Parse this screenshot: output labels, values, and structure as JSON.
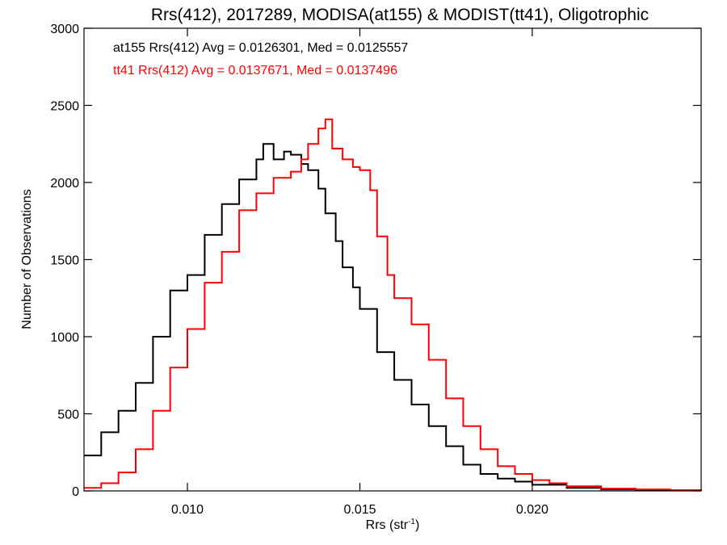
{
  "chart_data": {
    "type": "line",
    "title": "Rrs(412), 2017289, MODISA(at155) & MODIST(tt41), Oligotrophic",
    "xlabel": "Rrs (str",
    "xlabel_exp": "-1",
    "xlabel_end": ")",
    "ylabel": "Number of Observations",
    "xlim": [
      0.007,
      0.0249
    ],
    "ylim": [
      0,
      3000
    ],
    "xticks": [
      {
        "value": 0.01,
        "label": "0.010"
      },
      {
        "value": 0.015,
        "label": "0.015"
      },
      {
        "value": 0.02,
        "label": "0.020"
      }
    ],
    "yticks": [
      {
        "value": 0,
        "label": "0"
      },
      {
        "value": 500,
        "label": "500"
      },
      {
        "value": 1000,
        "label": "1000"
      },
      {
        "value": 1500,
        "label": "1500"
      },
      {
        "value": 2000,
        "label": "2000"
      },
      {
        "value": 2500,
        "label": "2500"
      },
      {
        "value": 3000,
        "label": "3000"
      }
    ],
    "grid": false,
    "legend_position": "top-left",
    "series": [
      {
        "name": "at155",
        "stat_text": "at155 Rrs(412) Avg = 0.0126301, Med = 0.0125557",
        "color": "#000000",
        "style": "step",
        "x": [
          0.007,
          0.0075,
          0.008,
          0.0085,
          0.009,
          0.0095,
          0.01,
          0.0105,
          0.011,
          0.0115,
          0.012,
          0.0122,
          0.0125,
          0.0128,
          0.013,
          0.0133,
          0.0135,
          0.0138,
          0.014,
          0.0143,
          0.0145,
          0.0148,
          0.015,
          0.0155,
          0.016,
          0.0165,
          0.017,
          0.0175,
          0.018,
          0.0185,
          0.019,
          0.0195,
          0.02,
          0.021,
          0.022,
          0.023,
          0.024,
          0.0249
        ],
        "y": [
          230,
          380,
          520,
          700,
          1000,
          1300,
          1400,
          1660,
          1860,
          2020,
          2150,
          2250,
          2150,
          2200,
          2180,
          2120,
          2080,
          1960,
          1800,
          1620,
          1450,
          1320,
          1180,
          900,
          720,
          560,
          420,
          290,
          170,
          110,
          80,
          60,
          40,
          20,
          10,
          5,
          3,
          2
        ]
      },
      {
        "name": "tt41",
        "stat_text": "tt41 Rrs(412) Avg = 0.0137671, Med = 0.0137496",
        "color": "#ff0000",
        "style": "step",
        "x": [
          0.007,
          0.0075,
          0.008,
          0.0085,
          0.009,
          0.0095,
          0.01,
          0.0105,
          0.011,
          0.0115,
          0.012,
          0.0125,
          0.013,
          0.0133,
          0.0135,
          0.0138,
          0.014,
          0.0142,
          0.0145,
          0.0148,
          0.015,
          0.0153,
          0.0155,
          0.0158,
          0.016,
          0.0165,
          0.017,
          0.0175,
          0.018,
          0.0185,
          0.019,
          0.0195,
          0.02,
          0.0205,
          0.021,
          0.022,
          0.023,
          0.024,
          0.0249
        ],
        "y": [
          20,
          50,
          120,
          270,
          520,
          800,
          1050,
          1350,
          1550,
          1820,
          1930,
          2030,
          2070,
          2150,
          2250,
          2350,
          2410,
          2220,
          2150,
          2100,
          2080,
          1950,
          1650,
          1400,
          1250,
          1080,
          850,
          600,
          420,
          270,
          160,
          110,
          70,
          50,
          30,
          15,
          10,
          5,
          2
        ]
      }
    ]
  }
}
